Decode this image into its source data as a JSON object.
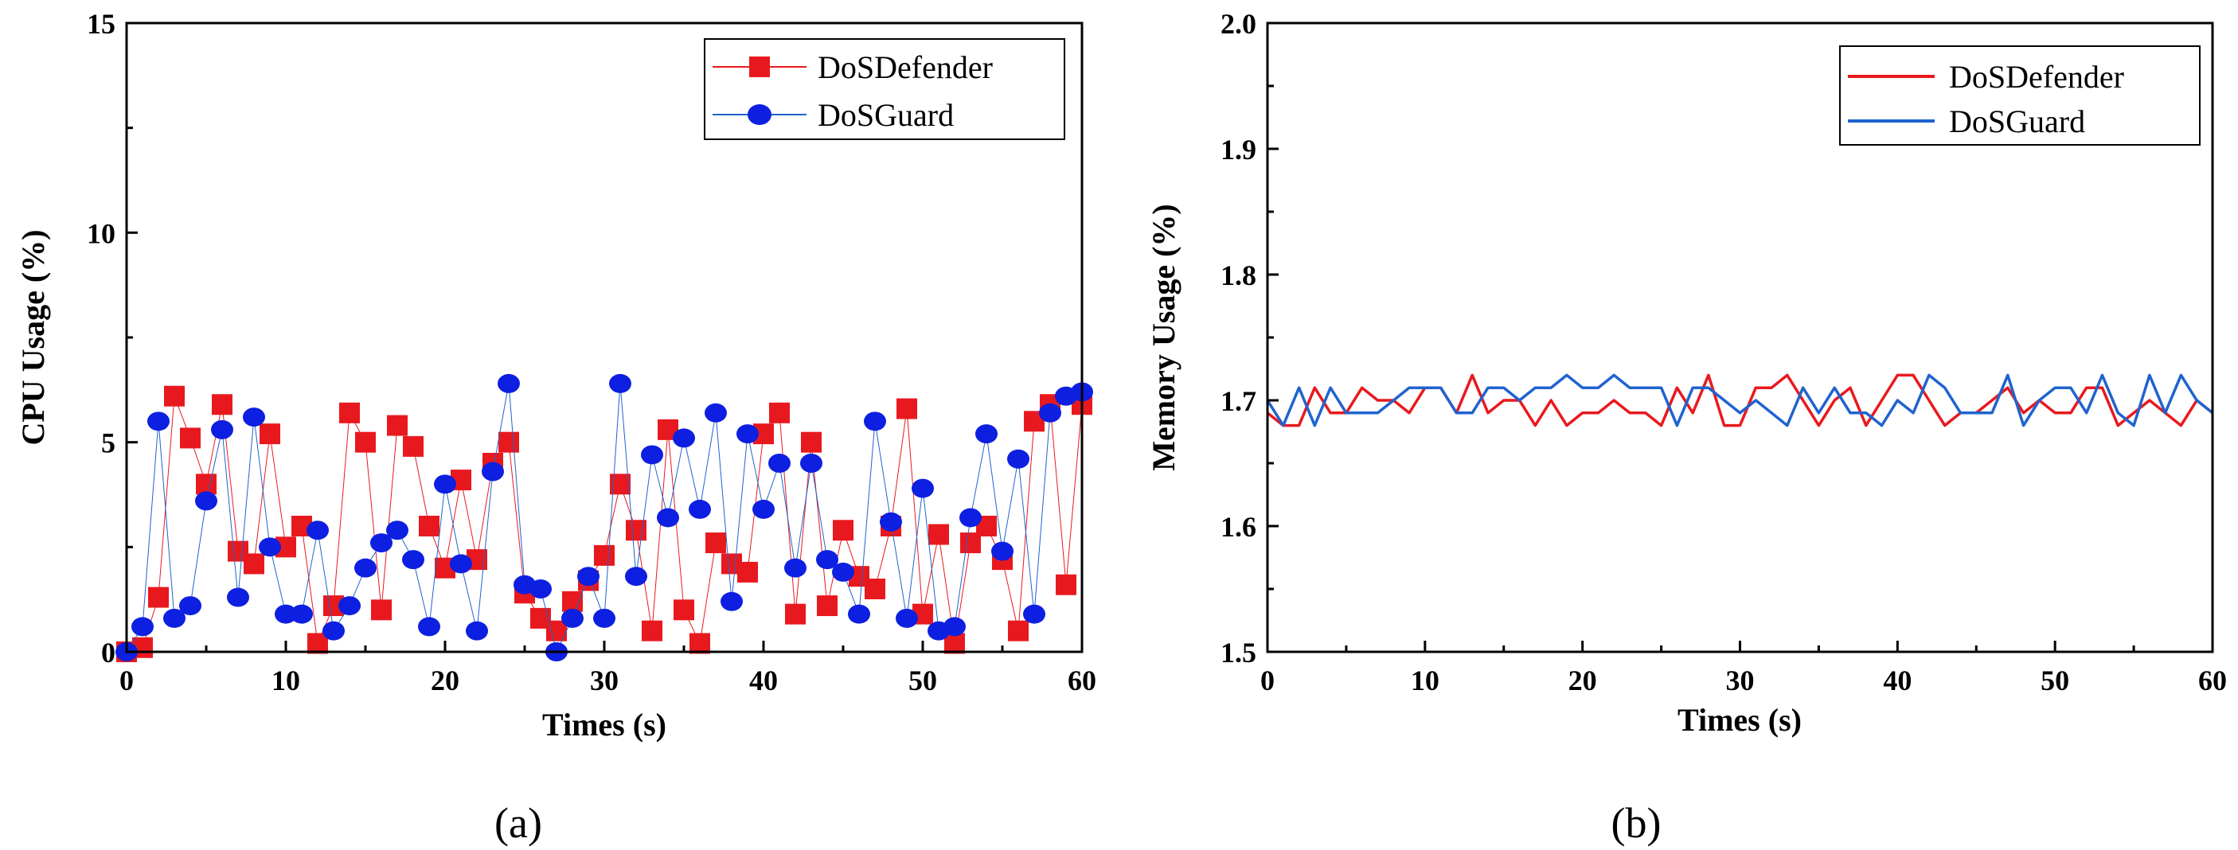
{
  "colors": {
    "defender": "#e8191e",
    "guard": "#1f63cf",
    "guard_marker": "#0d1fe0"
  },
  "chart_data": [
    {
      "type": "line",
      "caption": "(a)",
      "xlabel": "Times (s)",
      "ylabel": "CPU Usage (%)",
      "xlim": [
        0,
        60
      ],
      "ylim": [
        0,
        15
      ],
      "xticks": [
        "0",
        "10",
        "20",
        "30",
        "40",
        "50",
        "60"
      ],
      "yticks": [
        "0",
        "5",
        "10",
        "15"
      ],
      "legend": "top-right",
      "markers": true,
      "x": [
        0,
        1,
        2,
        3,
        4,
        5,
        6,
        7,
        8,
        9,
        10,
        11,
        12,
        13,
        14,
        15,
        16,
        17,
        18,
        19,
        20,
        21,
        22,
        23,
        24,
        25,
        26,
        27,
        28,
        29,
        30,
        31,
        32,
        33,
        34,
        35,
        36,
        37,
        38,
        39,
        40,
        41,
        42,
        43,
        44,
        45,
        46,
        47,
        48,
        49,
        50,
        51,
        52,
        53,
        54,
        55,
        56,
        57,
        58,
        59,
        60
      ],
      "series": [
        {
          "name": "DoSDefender",
          "values": [
            0,
            0.1,
            1.3,
            6.1,
            5.1,
            4.0,
            5.9,
            2.4,
            2.1,
            5.2,
            2.5,
            3.0,
            0.2,
            1.1,
            5.7,
            5.0,
            1.0,
            5.4,
            4.9,
            3.0,
            2.0,
            4.1,
            2.2,
            4.5,
            5.0,
            1.4,
            0.8,
            0.5,
            1.2,
            1.7,
            2.3,
            4.0,
            2.9,
            0.5,
            5.3,
            1.0,
            0.2,
            2.6,
            2.1,
            1.9,
            5.2,
            5.7,
            0.9,
            5.0,
            1.1,
            2.9,
            1.8,
            1.5,
            3.0,
            5.8,
            0.9,
            2.8,
            0.2,
            2.6,
            3.0,
            2.2,
            0.5,
            5.5,
            5.9,
            1.6,
            5.9
          ]
        },
        {
          "name": "DoSGuard",
          "values": [
            0,
            0.6,
            5.5,
            0.8,
            1.1,
            3.6,
            5.3,
            1.3,
            5.6,
            2.5,
            0.9,
            0.9,
            2.9,
            0.5,
            1.1,
            2.0,
            2.6,
            2.9,
            2.2,
            0.6,
            4.0,
            2.1,
            0.5,
            4.3,
            6.4,
            1.6,
            1.5,
            0,
            0.8,
            1.8,
            0.8,
            6.4,
            1.8,
            4.7,
            3.2,
            5.1,
            3.4,
            5.7,
            1.2,
            5.2,
            3.4,
            4.5,
            2.0,
            4.5,
            2.2,
            1.9,
            0.9,
            5.5,
            3.1,
            0.8,
            3.9,
            0.5,
            0.6,
            3.2,
            5.2,
            2.4,
            4.6,
            0.9,
            5.7,
            6.1,
            6.2
          ]
        }
      ]
    },
    {
      "type": "line",
      "caption": "(b)",
      "xlabel": "Times (s)",
      "ylabel": "Memory Usage (%)",
      "xlim": [
        0,
        60
      ],
      "ylim": [
        1.5,
        2.0
      ],
      "xticks": [
        "0",
        "10",
        "20",
        "30",
        "40",
        "50",
        "60"
      ],
      "yticks": [
        "1.5",
        "1.6",
        "1.7",
        "1.8",
        "1.9",
        "2.0"
      ],
      "legend": "top-right",
      "markers": false,
      "x": [
        0,
        1,
        2,
        3,
        4,
        5,
        6,
        7,
        8,
        9,
        10,
        11,
        12,
        13,
        14,
        15,
        16,
        17,
        18,
        19,
        20,
        21,
        22,
        23,
        24,
        25,
        26,
        27,
        28,
        29,
        30,
        31,
        32,
        33,
        34,
        35,
        36,
        37,
        38,
        39,
        40,
        41,
        42,
        43,
        44,
        45,
        46,
        47,
        48,
        49,
        50,
        51,
        52,
        53,
        54,
        55,
        56,
        57,
        58,
        59,
        60
      ],
      "series": [
        {
          "name": "DoSDefender",
          "values": [
            1.69,
            1.68,
            1.68,
            1.71,
            1.69,
            1.69,
            1.71,
            1.7,
            1.7,
            1.69,
            1.71,
            1.71,
            1.69,
            1.72,
            1.69,
            1.7,
            1.7,
            1.68,
            1.7,
            1.68,
            1.69,
            1.69,
            1.7,
            1.69,
            1.69,
            1.68,
            1.71,
            1.69,
            1.72,
            1.68,
            1.68,
            1.71,
            1.71,
            1.72,
            1.7,
            1.68,
            1.7,
            1.71,
            1.68,
            1.7,
            1.72,
            1.72,
            1.7,
            1.68,
            1.69,
            1.69,
            1.7,
            1.71,
            1.69,
            1.7,
            1.69,
            1.69,
            1.71,
            1.71,
            1.68,
            1.69,
            1.7,
            1.69,
            1.68,
            1.7,
            1.69
          ]
        },
        {
          "name": "DoSGuard",
          "values": [
            1.7,
            1.68,
            1.71,
            1.68,
            1.71,
            1.69,
            1.69,
            1.69,
            1.7,
            1.71,
            1.71,
            1.71,
            1.69,
            1.69,
            1.71,
            1.71,
            1.7,
            1.71,
            1.71,
            1.72,
            1.71,
            1.71,
            1.72,
            1.71,
            1.71,
            1.71,
            1.68,
            1.71,
            1.71,
            1.7,
            1.69,
            1.7,
            1.69,
            1.68,
            1.71,
            1.69,
            1.71,
            1.69,
            1.69,
            1.68,
            1.7,
            1.69,
            1.72,
            1.71,
            1.69,
            1.69,
            1.69,
            1.72,
            1.68,
            1.7,
            1.71,
            1.71,
            1.69,
            1.72,
            1.69,
            1.68,
            1.72,
            1.69,
            1.72,
            1.7,
            1.69
          ]
        }
      ]
    }
  ]
}
